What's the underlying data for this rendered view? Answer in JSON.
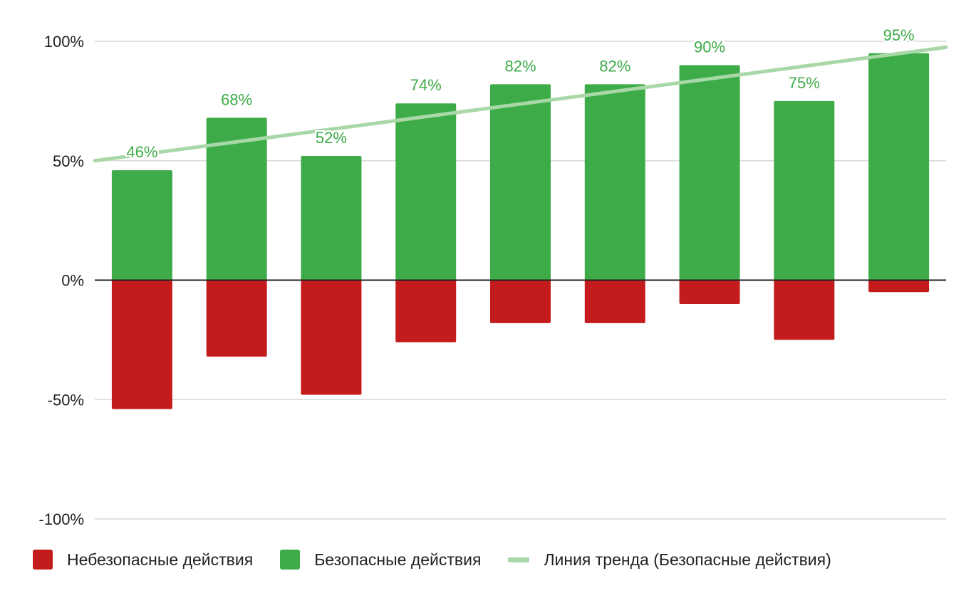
{
  "chart_data": {
    "type": "bar",
    "stacked": true,
    "categories": [
      "",
      "",
      "",
      "",
      "",
      "",
      "",
      "",
      ""
    ],
    "series": [
      {
        "name": "Небезопасные действия",
        "color": "#c41c1c",
        "values": [
          -54,
          -32,
          -48,
          -26,
          -18,
          -18,
          -10,
          -25,
          -5
        ]
      },
      {
        "name": "Безопасные действия",
        "color": "#3dab48",
        "values": [
          46,
          68,
          52,
          74,
          82,
          82,
          90,
          75,
          95
        ],
        "data_labels": [
          "46%",
          "68%",
          "52%",
          "74%",
          "82%",
          "82%",
          "90%",
          "75%",
          "95%"
        ],
        "data_label_color": "#3dab48"
      }
    ],
    "trendline": {
      "name": "Линия тренда (Безопасные действия)",
      "color": "#a8d8a8",
      "type": "linear",
      "start": 50,
      "end": 97.5
    },
    "ylim": [
      -100,
      100
    ],
    "yticks": [
      100,
      50,
      0,
      -50,
      -100
    ],
    "ytick_labels": [
      "100%",
      "50%",
      "0%",
      "-50%",
      "-100%"
    ],
    "title": "",
    "xlabel": "",
    "ylabel": "",
    "grid": true,
    "legend_position": "bottom-left"
  }
}
